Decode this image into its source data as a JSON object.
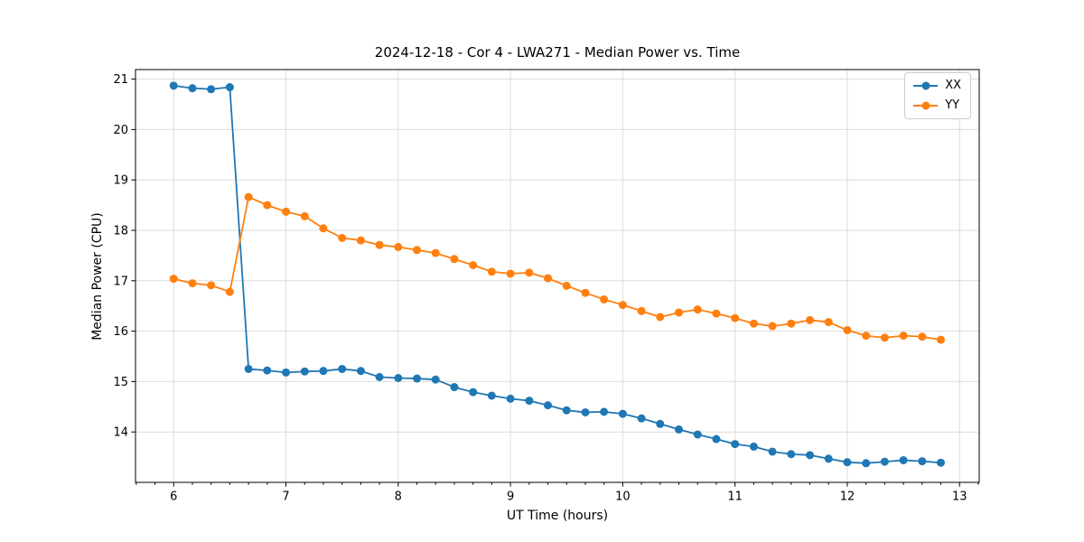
{
  "chart_data": {
    "type": "line",
    "title": "2024-12-18 - Cor 4 - LWA271 - Median Power vs. Time",
    "xlabel": "UT Time (hours)",
    "ylabel": "Median Power (CPU)",
    "x": [
      6.0,
      6.167,
      6.333,
      6.5,
      6.667,
      6.833,
      7.0,
      7.167,
      7.333,
      7.5,
      7.667,
      7.833,
      8.0,
      8.167,
      8.333,
      8.5,
      8.667,
      8.833,
      9.0,
      9.167,
      9.333,
      9.5,
      9.667,
      9.833,
      10.0,
      10.167,
      10.333,
      10.5,
      10.667,
      10.833,
      11.0,
      11.167,
      11.333,
      11.5,
      11.667,
      11.833,
      12.0,
      12.167,
      12.333,
      12.5,
      12.667,
      12.833
    ],
    "series": [
      {
        "name": "XX",
        "color": "#1f77b4",
        "values": [
          20.87,
          20.82,
          20.8,
          20.84,
          15.25,
          15.22,
          15.18,
          15.2,
          15.21,
          15.25,
          15.21,
          15.09,
          15.07,
          15.06,
          15.04,
          14.89,
          14.79,
          14.72,
          14.66,
          14.62,
          14.53,
          14.43,
          14.39,
          14.4,
          14.36,
          14.27,
          14.16,
          14.05,
          13.95,
          13.86,
          13.76,
          13.71,
          13.61,
          13.56,
          13.54,
          13.47,
          13.4,
          13.38,
          13.41,
          13.44,
          13.42,
          13.39
        ]
      },
      {
        "name": "YY",
        "color": "#ff7f0e",
        "values": [
          17.04,
          16.95,
          16.91,
          16.78,
          18.66,
          18.5,
          18.37,
          18.28,
          18.04,
          17.85,
          17.8,
          17.71,
          17.67,
          17.61,
          17.55,
          17.43,
          17.31,
          17.18,
          17.14,
          17.16,
          17.05,
          16.9,
          16.76,
          16.63,
          16.52,
          16.4,
          16.28,
          16.37,
          16.43,
          16.35,
          16.26,
          16.15,
          16.1,
          16.15,
          16.22,
          16.18,
          16.02,
          15.91,
          15.87,
          15.91,
          15.89,
          15.83
        ]
      }
    ],
    "xlim": [
      5.66,
      13.175
    ],
    "ylim": [
      13.0,
      21.19
    ],
    "x_ticks": [
      "6",
      "7",
      "8",
      "9",
      "10",
      "11",
      "12",
      "13"
    ],
    "y_ticks": [
      "14",
      "15",
      "16",
      "17",
      "18",
      "19",
      "20",
      "21"
    ],
    "x_minor_step": 0.1666667,
    "grid": true,
    "grid_color": "#dcdcdc",
    "spine_color": "#000000",
    "legend_position": "upper right",
    "marker": "o"
  }
}
